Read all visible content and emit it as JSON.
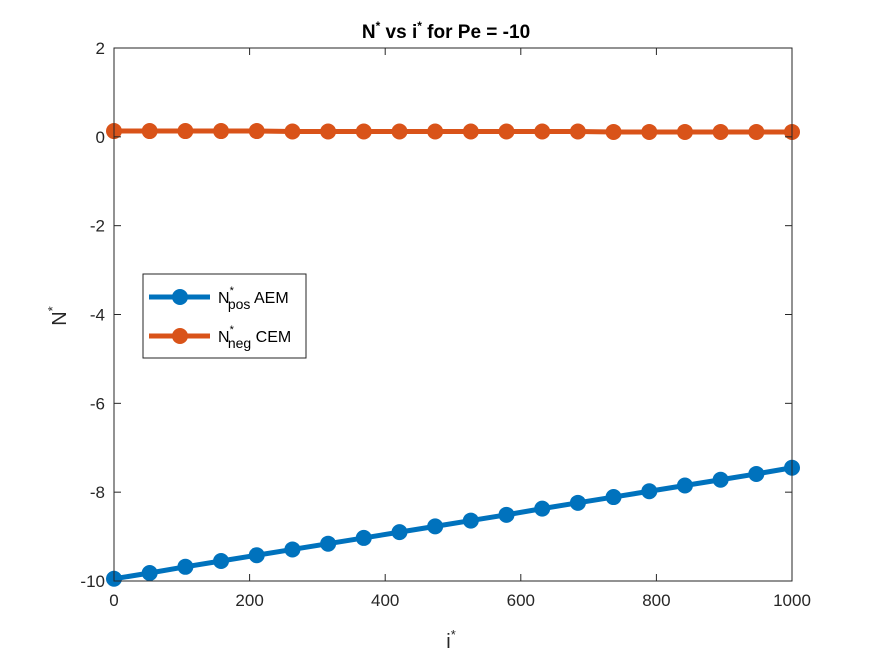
{
  "chart_data": {
    "type": "line",
    "title": {
      "main": "N",
      "sup1": "*",
      "mid": " vs i",
      "sup2": "*",
      "tail": " for Pe = -10"
    },
    "xlabel": {
      "base": "i",
      "sup": "*"
    },
    "ylabel": {
      "base": "N",
      "sup": "*"
    },
    "xlim": [
      0,
      1000
    ],
    "ylim": [
      -10,
      2
    ],
    "xticks": [
      0,
      200,
      400,
      600,
      800,
      1000
    ],
    "yticks": [
      -10,
      -8,
      -6,
      -4,
      -2,
      0,
      2
    ],
    "xtick_labels": [
      "0",
      "200",
      "400",
      "600",
      "800",
      "1000"
    ],
    "ytick_labels": [
      "-10",
      "-8",
      "-6",
      "-4",
      "-2",
      "0",
      "2"
    ],
    "grid": false,
    "legend_position": "center-left",
    "x": [
      0,
      52.6,
      105.3,
      157.9,
      210.5,
      263.2,
      315.8,
      368.4,
      421.1,
      473.7,
      526.3,
      578.9,
      631.6,
      684.2,
      736.8,
      789.5,
      842.1,
      894.7,
      947.4,
      1000
    ],
    "series": [
      {
        "name": {
          "base": "N",
          "sup": "*",
          "sub": "pos",
          "suffix": " AEM"
        },
        "color": "#0072BD",
        "values": [
          -9.95,
          -9.82,
          -9.68,
          -9.55,
          -9.42,
          -9.29,
          -9.16,
          -9.03,
          -8.9,
          -8.77,
          -8.64,
          -8.51,
          -8.37,
          -8.24,
          -8.11,
          -7.98,
          -7.85,
          -7.72,
          -7.59,
          -7.45
        ]
      },
      {
        "name": {
          "base": "N",
          "sup": "*",
          "sub": "neg",
          "suffix": " CEM"
        },
        "color": "#D95319",
        "values": [
          0.13,
          0.13,
          0.13,
          0.13,
          0.13,
          0.12,
          0.12,
          0.12,
          0.12,
          0.12,
          0.12,
          0.12,
          0.12,
          0.12,
          0.11,
          0.11,
          0.11,
          0.11,
          0.11,
          0.11
        ]
      }
    ]
  }
}
